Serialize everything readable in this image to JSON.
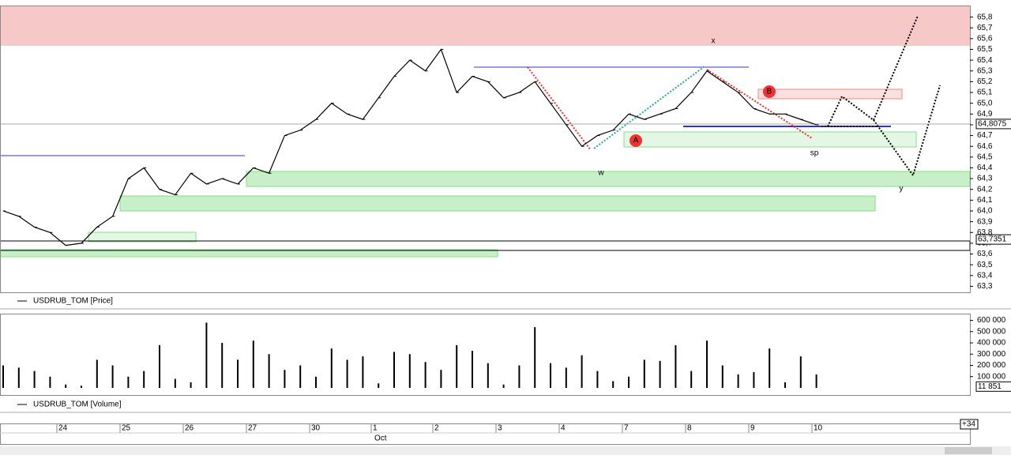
{
  "chart_data": [
    {
      "type": "line",
      "series": [
        {
          "name": "USDRUB_TOM [Price]",
          "color": "#000000",
          "values": [
            64.0,
            63.95,
            63.85,
            63.8,
            63.68,
            63.7,
            63.85,
            63.95,
            64.3,
            64.4,
            64.2,
            64.15,
            64.35,
            64.25,
            64.3,
            64.25,
            64.4,
            64.35,
            64.7,
            64.75,
            64.85,
            65.0,
            64.9,
            64.85,
            65.05,
            65.25,
            65.4,
            65.3,
            65.5,
            65.1,
            65.25,
            65.2,
            65.05,
            65.1,
            65.2,
            65.0,
            64.8,
            64.6,
            64.7,
            64.75,
            64.9,
            64.85,
            64.9,
            64.95,
            65.1,
            65.3,
            65.2,
            65.1,
            64.95,
            64.9,
            64.9,
            64.85,
            64.8
          ]
        }
      ],
      "ylim": [
        63.27,
        65.9
      ],
      "yticks": [
        {
          "value": 63.3,
          "label": "63,3"
        },
        {
          "value": 63.4,
          "label": "63,4"
        },
        {
          "value": 63.5,
          "label": "63,5"
        },
        {
          "value": 63.6,
          "label": "63,6"
        },
        {
          "value": 63.7,
          "label": "63,7"
        },
        {
          "value": 63.8,
          "label": "63,8"
        },
        {
          "value": 63.9,
          "label": "63,9"
        },
        {
          "value": 64.0,
          "label": "64,0"
        },
        {
          "value": 64.1,
          "label": "64,1"
        },
        {
          "value": 64.2,
          "label": "64,2"
        },
        {
          "value": 64.3,
          "label": "64,3"
        },
        {
          "value": 64.4,
          "label": "64,4"
        },
        {
          "value": 64.5,
          "label": "64,5"
        },
        {
          "value": 64.6,
          "label": "64,6"
        },
        {
          "value": 64.7,
          "label": "64,7"
        },
        {
          "value": 64.8,
          "label": "64,8"
        },
        {
          "value": 64.9,
          "label": "64,9"
        },
        {
          "value": 65.0,
          "label": "65,0"
        },
        {
          "value": 65.1,
          "label": "65,1"
        },
        {
          "value": 65.2,
          "label": "65,2"
        },
        {
          "value": 65.3,
          "label": "65,3"
        },
        {
          "value": 65.4,
          "label": "65,4"
        },
        {
          "value": 65.5,
          "label": "65,5"
        },
        {
          "value": 65.6,
          "label": "65,6"
        },
        {
          "value": 65.7,
          "label": "65,7"
        },
        {
          "value": 65.8,
          "label": "65,8"
        }
      ],
      "markers": [
        {
          "value": 64.8075,
          "label": "64,8075"
        },
        {
          "value": 63.7351,
          "label": "63,7351"
        }
      ]
    },
    {
      "type": "bar",
      "series": [
        {
          "name": "USDRUB_TOM [Volume]",
          "color": "#000000",
          "values": [
            200000,
            180000,
            150000,
            100000,
            30000,
            20000,
            250000,
            200000,
            100000,
            150000,
            380000,
            80000,
            50000,
            580000,
            400000,
            250000,
            420000,
            300000,
            160000,
            200000,
            100000,
            350000,
            250000,
            280000,
            40000,
            320000,
            300000,
            230000,
            160000,
            380000,
            330000,
            220000,
            30000,
            200000,
            540000,
            220000,
            180000,
            290000,
            150000,
            60000,
            100000,
            250000,
            240000,
            380000,
            150000,
            420000,
            200000,
            120000,
            140000,
            350000,
            50000,
            280000,
            120000
          ]
        }
      ],
      "ylim": [
        0,
        660000
      ],
      "yticks": [
        {
          "value": 100000,
          "label": "100 000"
        },
        {
          "value": 200000,
          "label": "200 000"
        },
        {
          "value": 300000,
          "label": "300 000"
        },
        {
          "value": 400000,
          "label": "400 000"
        },
        {
          "value": 500000,
          "label": "500 000"
        },
        {
          "value": 600000,
          "label": "600 000"
        }
      ],
      "markers": [
        {
          "value": 11851,
          "label": "11 851"
        }
      ]
    }
  ],
  "x_axis": {
    "labels": [
      "24",
      "25",
      "26",
      "27",
      "30",
      "1",
      "2",
      "3",
      "4",
      "7",
      "8",
      "9",
      "10"
    ],
    "month": "Oct",
    "offset": "+34"
  },
  "annotations": [
    "x",
    "w",
    "y",
    "sp",
    "A",
    "B"
  ]
}
